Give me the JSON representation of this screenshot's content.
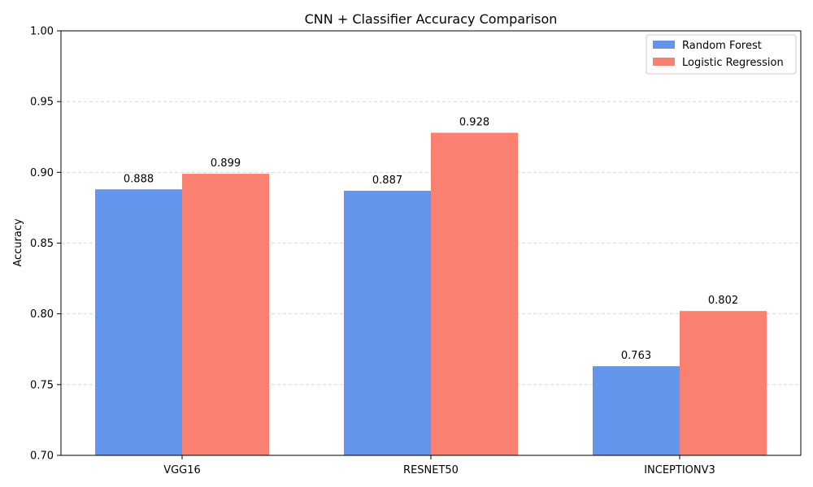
{
  "chart_data": {
    "type": "bar",
    "title": "CNN + Classifier Accuracy Comparison",
    "xlabel": "",
    "ylabel": "Accuracy",
    "categories": [
      "VGG16",
      "RESNET50",
      "INCEPTIONV3"
    ],
    "series": [
      {
        "name": "Random Forest",
        "values": [
          0.888,
          0.887,
          0.763
        ],
        "labels": [
          "0.888",
          "0.887",
          "0.763"
        ],
        "color": "#6495ED"
      },
      {
        "name": "Logistic Regression",
        "values": [
          0.899,
          0.928,
          0.802
        ],
        "labels": [
          "0.899",
          "0.928",
          "0.802"
        ],
        "color": "#FA8072"
      }
    ],
    "ylim": [
      0.7,
      1.0
    ],
    "yticks": [
      "0.70",
      "0.75",
      "0.80",
      "0.85",
      "0.90",
      "0.95",
      "1.00"
    ],
    "grid": "y-dashed",
    "legend_position": "top-right"
  }
}
